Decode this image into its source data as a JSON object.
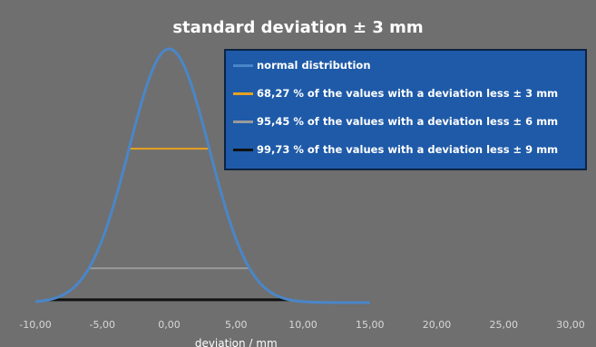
{
  "chart_data": {
    "type": "line",
    "title": "standard deviation ± 3 mm",
    "xlabel": "deviation / mm",
    "ylabel": "",
    "xlim": [
      -10,
      30
    ],
    "xticks": [
      "-10,00",
      "-5,00",
      "0,00",
      "5,00",
      "10,00",
      "15,00",
      "20,00",
      "25,00",
      "30,00"
    ],
    "grid": false,
    "legend_position": "top-right",
    "series": [
      {
        "name": "normal distribution",
        "color": "#4a86c8",
        "type": "curve",
        "mean": 0,
        "sd": 3,
        "x": [
          -10,
          15
        ]
      },
      {
        "name": "68,27 % of the values with a deviation less ± 3 mm",
        "color": "#e8a020",
        "type": "interval",
        "x": [
          -3,
          3
        ]
      },
      {
        "name": "95,45 % of the values with a deviation less ± 6 mm",
        "color": "#9a9a9a",
        "type": "interval",
        "x": [
          -6,
          6
        ]
      },
      {
        "name": "99,73 % of the values with a deviation less ± 9 mm",
        "color": "#111111",
        "type": "interval",
        "x": [
          -9,
          9
        ]
      }
    ]
  }
}
